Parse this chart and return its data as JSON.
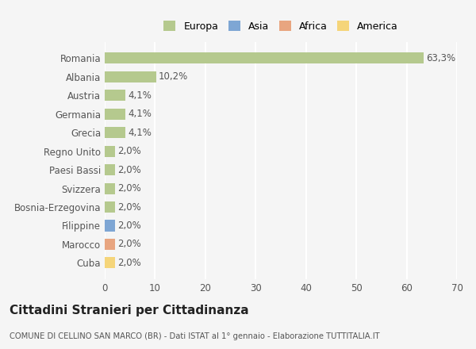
{
  "countries": [
    "Romania",
    "Albania",
    "Austria",
    "Germania",
    "Grecia",
    "Regno Unito",
    "Paesi Bassi",
    "Svizzera",
    "Bosnia-Erzegovina",
    "Filippine",
    "Marocco",
    "Cuba"
  ],
  "values": [
    63.3,
    10.2,
    4.1,
    4.1,
    4.1,
    2.0,
    2.0,
    2.0,
    2.0,
    2.0,
    2.0,
    2.0
  ],
  "labels": [
    "63,3%",
    "10,2%",
    "4,1%",
    "4,1%",
    "4,1%",
    "2,0%",
    "2,0%",
    "2,0%",
    "2,0%",
    "2,0%",
    "2,0%",
    "2,0%"
  ],
  "colors": [
    "#b5c98e",
    "#b5c98e",
    "#b5c98e",
    "#b5c98e",
    "#b5c98e",
    "#b5c98e",
    "#b5c98e",
    "#b5c98e",
    "#b5c98e",
    "#7ea6d4",
    "#e8a580",
    "#f5d57a"
  ],
  "legend_labels": [
    "Europa",
    "Asia",
    "Africa",
    "America"
  ],
  "legend_colors": [
    "#b5c98e",
    "#7ea6d4",
    "#e8a580",
    "#f5d57a"
  ],
  "xlim": [
    0,
    70
  ],
  "xticks": [
    0,
    10,
    20,
    30,
    40,
    50,
    60,
    70
  ],
  "title": "Cittadini Stranieri per Cittadinanza",
  "subtitle": "COMUNE DI CELLINO SAN MARCO (BR) - Dati ISTAT al 1° gennaio - Elaborazione TUTTITALIA.IT",
  "bg_color": "#f5f5f5",
  "grid_color": "#ffffff",
  "bar_height": 0.6
}
